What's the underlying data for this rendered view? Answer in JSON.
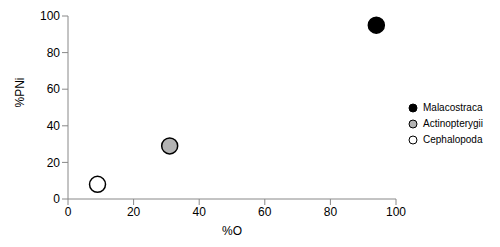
{
  "chart_data": {
    "type": "scatter",
    "x_label": "%O",
    "y_label": "%PNi",
    "xlim": [
      0,
      100
    ],
    "xticks": [
      0,
      20,
      40,
      60,
      80,
      100
    ],
    "ylim": [
      0,
      100
    ],
    "yticks": [
      0,
      20,
      40,
      60,
      80,
      100
    ],
    "grid": false,
    "legend": "right",
    "marker": "circle",
    "series": [
      {
        "name": "Malacostraca",
        "color": "#000000",
        "x": [
          94
        ],
        "values": [
          95
        ]
      },
      {
        "name": "Actinopterygii",
        "color": "#b3b3b3",
        "x": [
          31
        ],
        "values": [
          29
        ]
      },
      {
        "name": "Cephalopoda",
        "color": "#ffffff",
        "x": [
          9
        ],
        "values": [
          8
        ]
      }
    ]
  }
}
